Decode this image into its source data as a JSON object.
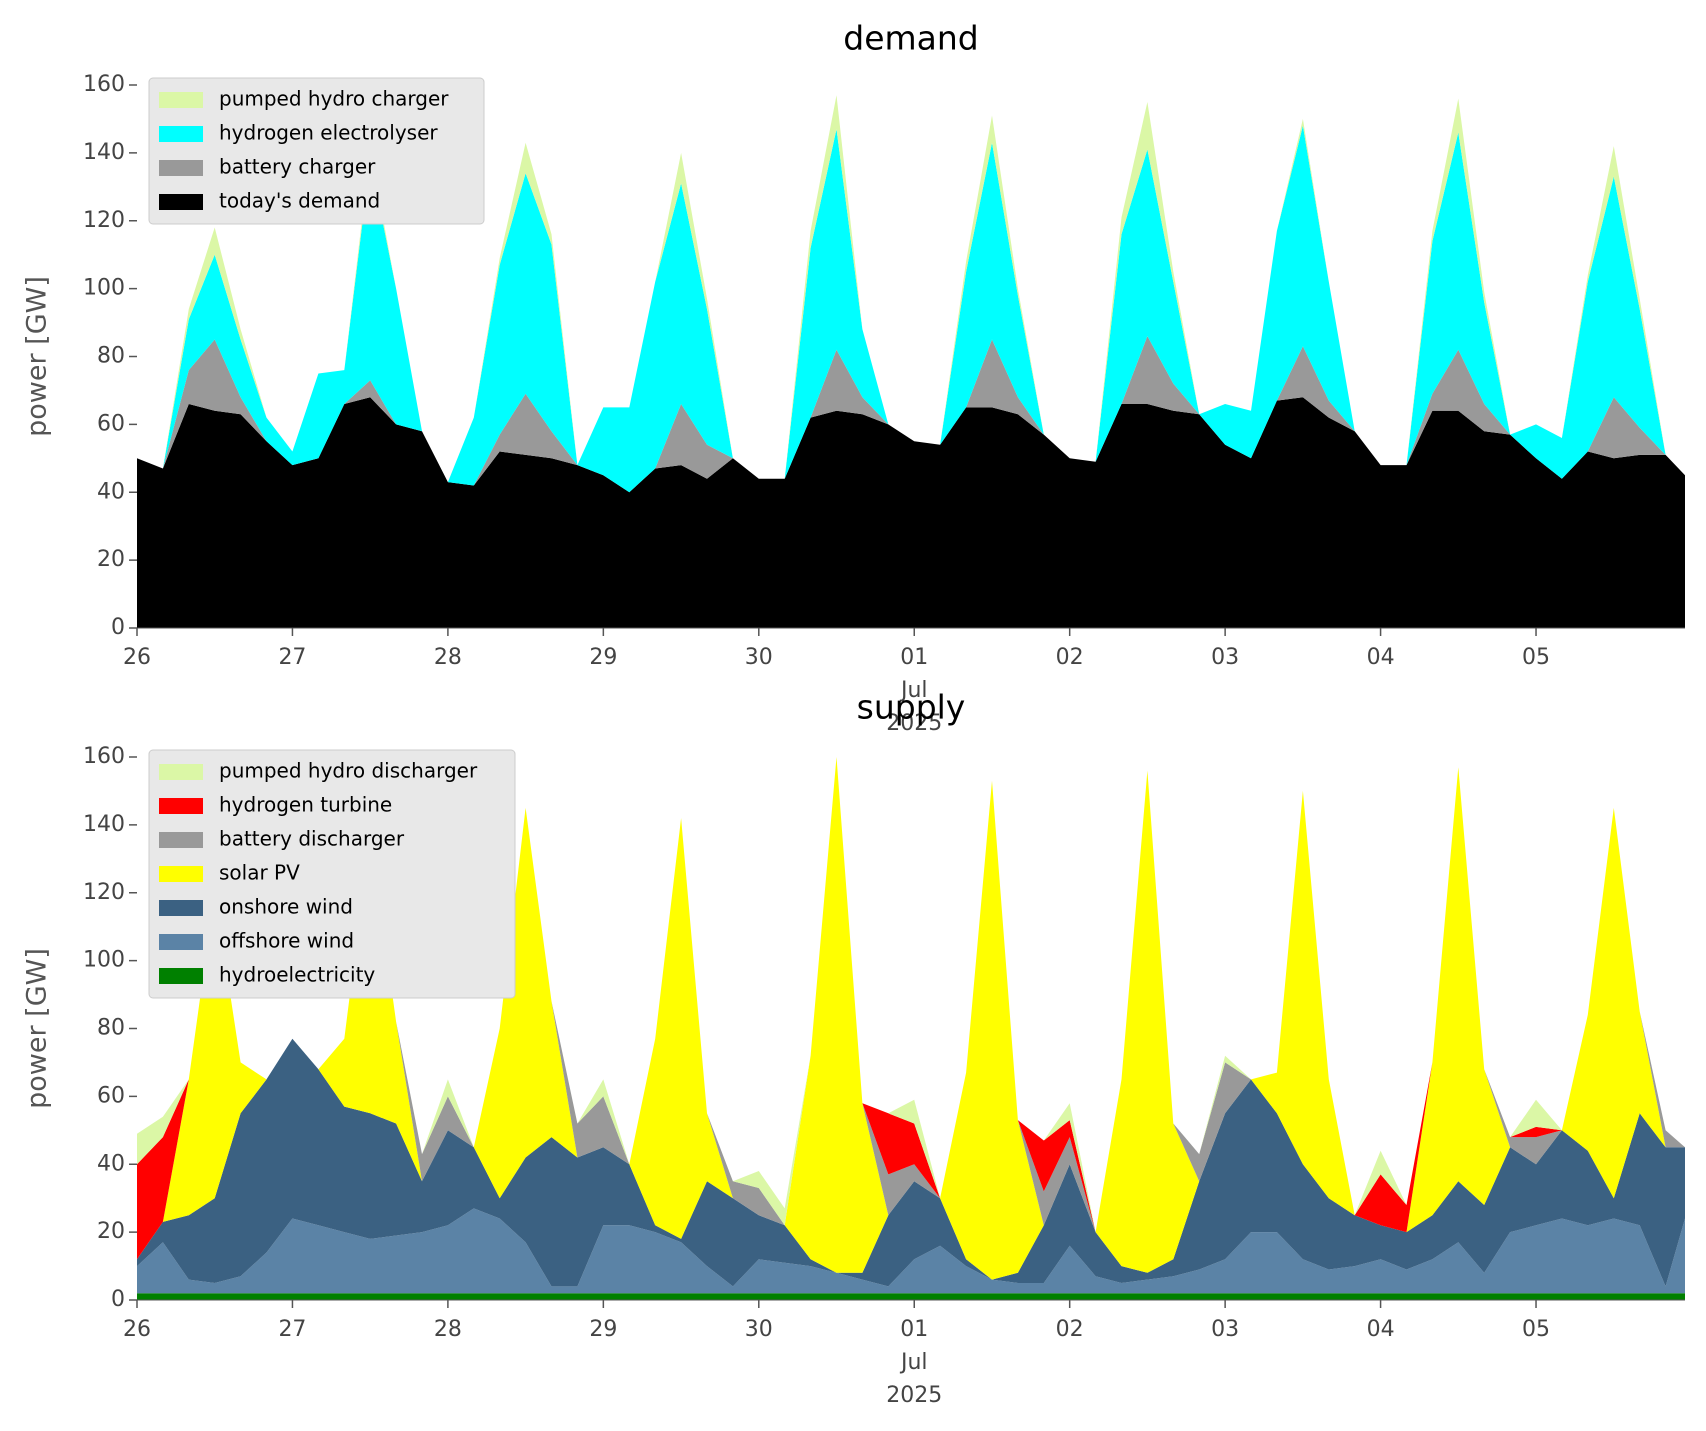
{
  "chart_data": [
    {
      "type": "stacked-area",
      "title": "demand",
      "y_label": "power [GW]",
      "legend": "upper left",
      "grid": false,
      "x": [
        "2025-06-26T00:00",
        "2025-06-26T04:00",
        "2025-06-26T08:00",
        "2025-06-26T12:00",
        "2025-06-26T16:00",
        "2025-06-26T20:00",
        "2025-06-27T00:00",
        "2025-06-27T04:00",
        "2025-06-27T08:00",
        "2025-06-27T12:00",
        "2025-06-27T16:00",
        "2025-06-27T20:00",
        "2025-06-28T00:00",
        "2025-06-28T04:00",
        "2025-06-28T08:00",
        "2025-06-28T12:00",
        "2025-06-28T16:00",
        "2025-06-28T20:00",
        "2025-06-29T00:00",
        "2025-06-29T04:00",
        "2025-06-29T08:00",
        "2025-06-29T12:00",
        "2025-06-29T16:00",
        "2025-06-29T20:00",
        "2025-06-30T00:00",
        "2025-06-30T04:00",
        "2025-06-30T08:00",
        "2025-06-30T12:00",
        "2025-06-30T16:00",
        "2025-06-30T20:00",
        "2025-07-01T00:00",
        "2025-07-01T04:00",
        "2025-07-01T08:00",
        "2025-07-01T12:00",
        "2025-07-01T16:00",
        "2025-07-01T20:00",
        "2025-07-02T00:00",
        "2025-07-02T04:00",
        "2025-07-02T08:00",
        "2025-07-02T12:00",
        "2025-07-02T16:00",
        "2025-07-02T20:00",
        "2025-07-03T00:00",
        "2025-07-03T04:00",
        "2025-07-03T08:00",
        "2025-07-03T12:00",
        "2025-07-03T16:00",
        "2025-07-03T20:00",
        "2025-07-04T00:00",
        "2025-07-04T04:00",
        "2025-07-04T08:00",
        "2025-07-04T12:00",
        "2025-07-04T16:00",
        "2025-07-04T20:00",
        "2025-07-05T00:00",
        "2025-07-05T04:00",
        "2025-07-05T08:00",
        "2025-07-05T12:00",
        "2025-07-05T16:00",
        "2025-07-05T20:00",
        "2025-07-05T23:00"
      ],
      "xlim": [
        "2025-06-26T00:00",
        "2025-07-05T23:00"
      ],
      "xticks": [
        {
          "value": "2025-06-26",
          "label": "26"
        },
        {
          "value": "2025-06-27",
          "label": "27"
        },
        {
          "value": "2025-06-28",
          "label": "28"
        },
        {
          "value": "2025-06-29",
          "label": "29"
        },
        {
          "value": "2025-06-30",
          "label": "30"
        },
        {
          "value": "2025-07-01",
          "label": "01",
          "sublabel": [
            "Jul",
            "2025"
          ]
        },
        {
          "value": "2025-07-02",
          "label": "02"
        },
        {
          "value": "2025-07-03",
          "label": "03"
        },
        {
          "value": "2025-07-04",
          "label": "04"
        },
        {
          "value": "2025-07-05",
          "label": "05"
        }
      ],
      "ylim": [
        0,
        160
      ],
      "yticks": [
        0,
        20,
        40,
        60,
        80,
        100,
        120,
        140,
        160
      ],
      "series": [
        {
          "name": "pumped hydro charger",
          "color": "#dbf7a6",
          "values": [
            0,
            0,
            3,
            8,
            3,
            0,
            0,
            0,
            0,
            3,
            0,
            0,
            0,
            0,
            2,
            9,
            3,
            0,
            0,
            0,
            0,
            9,
            3,
            0,
            0,
            0,
            5,
            10,
            0,
            0,
            0,
            0,
            3,
            8,
            2,
            0,
            0,
            0,
            5,
            14,
            3,
            0,
            0,
            0,
            0,
            2,
            0,
            0,
            0,
            0,
            3,
            10,
            3,
            0,
            0,
            0,
            2,
            9,
            3,
            0,
            0
          ]
        },
        {
          "name": "hydrogen electrolyser",
          "color": "#00ffff",
          "values": [
            0,
            0,
            15,
            25,
            17,
            7,
            4,
            25,
            10,
            65,
            40,
            0,
            0,
            20,
            50,
            65,
            55,
            0,
            20,
            25,
            55,
            65,
            40,
            0,
            0,
            0,
            50,
            65,
            20,
            0,
            0,
            0,
            40,
            58,
            30,
            0,
            0,
            0,
            50,
            55,
            30,
            0,
            12,
            14,
            50,
            65,
            35,
            0,
            0,
            0,
            45,
            64,
            30,
            0,
            10,
            12,
            50,
            65,
            35,
            0,
            0
          ]
        },
        {
          "name": "battery charger",
          "color": "#999999",
          "values": [
            0,
            0,
            10,
            21,
            5,
            0,
            0,
            0,
            0,
            5,
            0,
            0,
            0,
            0,
            5,
            18,
            8,
            0,
            0,
            0,
            0,
            18,
            10,
            0,
            0,
            0,
            0,
            18,
            5,
            0,
            0,
            0,
            0,
            20,
            5,
            0,
            0,
            0,
            0,
            20,
            8,
            0,
            0,
            0,
            0,
            15,
            5,
            0,
            0,
            0,
            5,
            18,
            8,
            0,
            0,
            0,
            0,
            18,
            8,
            0,
            0
          ]
        },
        {
          "name": "today's demand",
          "color": "#000000",
          "values": [
            50,
            47,
            66,
            64,
            63,
            55,
            48,
            50,
            66,
            68,
            60,
            58,
            43,
            42,
            52,
            51,
            50,
            48,
            45,
            40,
            47,
            48,
            44,
            50,
            44,
            44,
            62,
            64,
            63,
            60,
            55,
            54,
            65,
            65,
            63,
            57,
            50,
            49,
            66,
            66,
            64,
            63,
            54,
            50,
            67,
            68,
            62,
            58,
            48,
            48,
            64,
            64,
            58,
            57,
            50,
            44,
            52,
            50,
            51,
            51,
            45
          ]
        }
      ]
    },
    {
      "type": "stacked-area",
      "title": "supply",
      "y_label": "power [GW]",
      "legend": "upper left",
      "grid": false,
      "x": [
        "2025-06-26T00:00",
        "2025-06-26T04:00",
        "2025-06-26T08:00",
        "2025-06-26T12:00",
        "2025-06-26T16:00",
        "2025-06-26T20:00",
        "2025-06-27T00:00",
        "2025-06-27T04:00",
        "2025-06-27T08:00",
        "2025-06-27T12:00",
        "2025-06-27T16:00",
        "2025-06-27T20:00",
        "2025-06-28T00:00",
        "2025-06-28T04:00",
        "2025-06-28T08:00",
        "2025-06-28T12:00",
        "2025-06-28T16:00",
        "2025-06-28T20:00",
        "2025-06-29T00:00",
        "2025-06-29T04:00",
        "2025-06-29T08:00",
        "2025-06-29T12:00",
        "2025-06-29T16:00",
        "2025-06-29T20:00",
        "2025-06-30T00:00",
        "2025-06-30T04:00",
        "2025-06-30T08:00",
        "2025-06-30T12:00",
        "2025-06-30T16:00",
        "2025-06-30T20:00",
        "2025-07-01T00:00",
        "2025-07-01T04:00",
        "2025-07-01T08:00",
        "2025-07-01T12:00",
        "2025-07-01T16:00",
        "2025-07-01T20:00",
        "2025-07-02T00:00",
        "2025-07-02T04:00",
        "2025-07-02T08:00",
        "2025-07-02T12:00",
        "2025-07-02T16:00",
        "2025-07-02T20:00",
        "2025-07-03T00:00",
        "2025-07-03T04:00",
        "2025-07-03T08:00",
        "2025-07-03T12:00",
        "2025-07-03T16:00",
        "2025-07-03T20:00",
        "2025-07-04T00:00",
        "2025-07-04T04:00",
        "2025-07-04T08:00",
        "2025-07-04T12:00",
        "2025-07-04T16:00",
        "2025-07-04T20:00",
        "2025-07-05T00:00",
        "2025-07-05T04:00",
        "2025-07-05T08:00",
        "2025-07-05T12:00",
        "2025-07-05T16:00",
        "2025-07-05T20:00",
        "2025-07-05T23:00"
      ],
      "xlim": [
        "2025-06-26T00:00",
        "2025-07-05T23:00"
      ],
      "xticks": [
        {
          "value": "2025-06-26",
          "label": "26"
        },
        {
          "value": "2025-06-27",
          "label": "27"
        },
        {
          "value": "2025-06-28",
          "label": "28"
        },
        {
          "value": "2025-06-29",
          "label": "29"
        },
        {
          "value": "2025-06-30",
          "label": "30"
        },
        {
          "value": "2025-07-01",
          "label": "01",
          "sublabel": [
            "Jul",
            "2025"
          ]
        },
        {
          "value": "2025-07-02",
          "label": "02"
        },
        {
          "value": "2025-07-03",
          "label": "03"
        },
        {
          "value": "2025-07-04",
          "label": "04"
        },
        {
          "value": "2025-07-05",
          "label": "05"
        }
      ],
      "ylim": [
        0,
        160
      ],
      "yticks": [
        0,
        20,
        40,
        60,
        80,
        100,
        120,
        140,
        160
      ],
      "series": [
        {
          "name": "pumped hydro discharger",
          "color": "#dbf7a6",
          "values": [
            9,
            6,
            0,
            0,
            0,
            0,
            0,
            0,
            0,
            0,
            0,
            0,
            5,
            0,
            0,
            0,
            0,
            0,
            5,
            0,
            0,
            0,
            0,
            0,
            5,
            5,
            0,
            0,
            0,
            0,
            7,
            0,
            0,
            0,
            0,
            0,
            5,
            0,
            0,
            0,
            0,
            0,
            2,
            0,
            0,
            0,
            0,
            0,
            7,
            0,
            0,
            0,
            0,
            0,
            8,
            0,
            0,
            0,
            0,
            0,
            0
          ]
        },
        {
          "name": "hydrogen turbine",
          "color": "#ff0000",
          "values": [
            28,
            25,
            0,
            0,
            0,
            0,
            0,
            0,
            0,
            0,
            0,
            0,
            0,
            0,
            0,
            0,
            0,
            0,
            0,
            0,
            0,
            0,
            0,
            0,
            0,
            0,
            0,
            0,
            0,
            18,
            12,
            0,
            0,
            0,
            0,
            15,
            5,
            0,
            0,
            0,
            0,
            0,
            0,
            0,
            0,
            0,
            0,
            0,
            15,
            8,
            0,
            0,
            0,
            0,
            3,
            0,
            0,
            0,
            0,
            0,
            0
          ]
        },
        {
          "name": "battery discharger",
          "color": "#999999",
          "values": [
            0,
            0,
            0,
            0,
            0,
            0,
            0,
            0,
            0,
            0,
            0,
            8,
            10,
            0,
            0,
            0,
            0,
            10,
            15,
            0,
            0,
            0,
            0,
            5,
            8,
            0,
            0,
            0,
            0,
            12,
            5,
            0,
            0,
            0,
            0,
            10,
            8,
            0,
            0,
            0,
            0,
            8,
            15,
            0,
            0,
            0,
            0,
            0,
            0,
            0,
            0,
            0,
            0,
            3,
            8,
            0,
            0,
            0,
            0,
            5,
            0
          ]
        },
        {
          "name": "solar PV",
          "color": "#ffff00",
          "values": [
            0,
            0,
            40,
            90,
            15,
            0,
            0,
            0,
            20,
            82,
            30,
            0,
            0,
            0,
            50,
            103,
            40,
            0,
            0,
            0,
            55,
            124,
            20,
            0,
            0,
            0,
            60,
            152,
            50,
            0,
            0,
            0,
            55,
            147,
            45,
            0,
            0,
            0,
            55,
            148,
            40,
            0,
            0,
            0,
            12,
            110,
            35,
            0,
            0,
            0,
            45,
            122,
            40,
            0,
            0,
            0,
            40,
            115,
            30,
            0,
            0
          ]
        },
        {
          "name": "onshore wind",
          "color": "#3b6182",
          "values": [
            2,
            6,
            19,
            25,
            48,
            51,
            53,
            46,
            37,
            37,
            33,
            15,
            28,
            18,
            6,
            25,
            44,
            38,
            23,
            18,
            2,
            1,
            25,
            26,
            13,
            11,
            2,
            0,
            2,
            21,
            23,
            14,
            2,
            0,
            3,
            17,
            24,
            13,
            5,
            2,
            5,
            26,
            43,
            45,
            35,
            28,
            21,
            15,
            10,
            11,
            13,
            18,
            20,
            25,
            18,
            26,
            22,
            6,
            33,
            41,
            21
          ]
        },
        {
          "name": "offshore wind",
          "color": "#5b83a6",
          "values": [
            8,
            15,
            4,
            3,
            5,
            12,
            22,
            20,
            18,
            16,
            17,
            18,
            20,
            25,
            22,
            15,
            2,
            2,
            20,
            20,
            18,
            15,
            8,
            2,
            10,
            9,
            8,
            6,
            4,
            2,
            10,
            14,
            8,
            4,
            3,
            3,
            14,
            5,
            3,
            4,
            5,
            7,
            10,
            18,
            18,
            10,
            7,
            8,
            10,
            7,
            10,
            15,
            6,
            18,
            20,
            22,
            20,
            22,
            20,
            2,
            22
          ]
        },
        {
          "name": "hydroelectricity",
          "color": "#008000",
          "values": [
            2,
            2,
            2,
            2,
            2,
            2,
            2,
            2,
            2,
            2,
            2,
            2,
            2,
            2,
            2,
            2,
            2,
            2,
            2,
            2,
            2,
            2,
            2,
            2,
            2,
            2,
            2,
            2,
            2,
            2,
            2,
            2,
            2,
            2,
            2,
            2,
            2,
            2,
            2,
            2,
            2,
            2,
            2,
            2,
            2,
            2,
            2,
            2,
            2,
            2,
            2,
            2,
            2,
            2,
            2,
            2,
            2,
            2,
            2,
            2,
            2
          ]
        }
      ]
    }
  ]
}
